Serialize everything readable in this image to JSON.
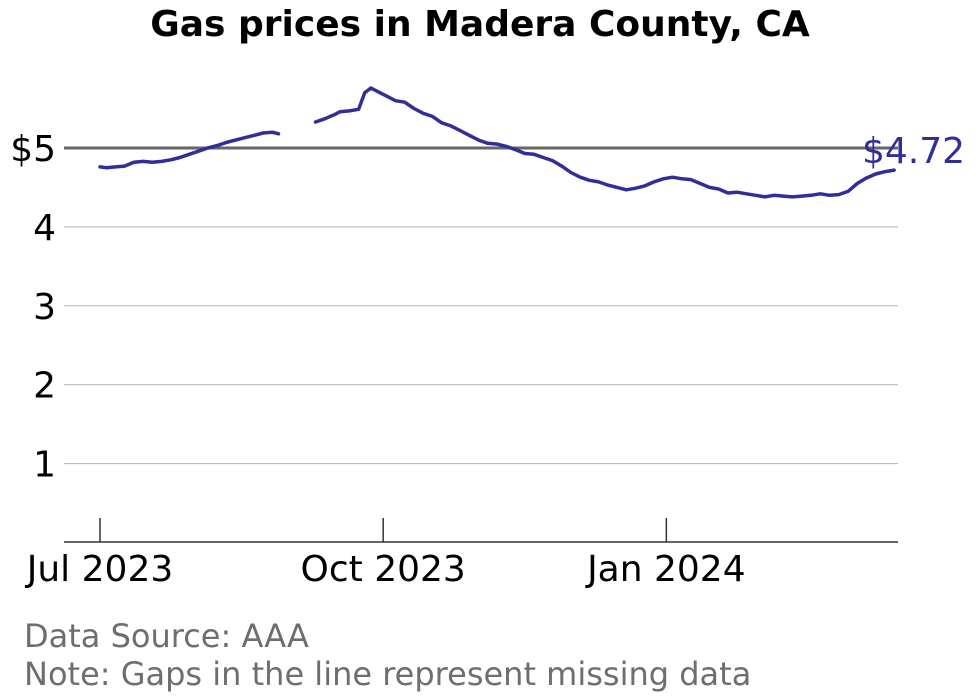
{
  "chart_data": {
    "type": "line",
    "title": "Gas prices in Madera County, CA",
    "y_tick_labels": [
      "$5",
      "4",
      "3",
      "2",
      "1"
    ],
    "y_ticks": [
      5,
      4,
      3,
      2,
      1
    ],
    "ylim": [
      0,
      6
    ],
    "x_tick_labels": [
      "Jul 2023",
      "Oct 2023",
      "Jan 2024"
    ],
    "x_ticks": [
      "2023-07-01",
      "2023-10-01",
      "2024-01-01"
    ],
    "reference_line": {
      "value": 5,
      "color": "#666666"
    },
    "last_value_label": "$4.72",
    "grid": true,
    "series": [
      {
        "color": "#332d99",
        "points": [
          [
            "2023-07-01",
            4.76
          ],
          [
            "2023-07-03",
            4.75
          ],
          [
            "2023-07-06",
            4.76
          ],
          [
            "2023-07-09",
            4.77
          ],
          [
            "2023-07-12",
            4.82
          ],
          [
            "2023-07-15",
            4.83
          ],
          [
            "2023-07-18",
            4.82
          ],
          [
            "2023-07-21",
            4.83
          ],
          [
            "2023-07-24",
            4.85
          ],
          [
            "2023-07-27",
            4.88
          ],
          [
            "2023-07-30",
            4.92
          ],
          [
            "2023-08-02",
            4.96
          ],
          [
            "2023-08-05",
            5.0
          ],
          [
            "2023-08-08",
            5.03
          ],
          [
            "2023-08-11",
            5.07
          ],
          [
            "2023-08-14",
            5.1
          ],
          [
            "2023-08-17",
            5.13
          ],
          [
            "2023-08-20",
            5.16
          ],
          [
            "2023-08-23",
            5.19
          ],
          [
            "2023-08-26",
            5.2
          ],
          [
            "2023-08-28",
            5.18
          ],
          null,
          [
            "2023-09-09",
            5.33
          ],
          [
            "2023-09-12",
            5.37
          ],
          [
            "2023-09-15",
            5.42
          ],
          [
            "2023-09-17",
            5.46
          ],
          [
            "2023-09-20",
            5.47
          ],
          [
            "2023-09-23",
            5.49
          ],
          [
            "2023-09-25",
            5.7
          ],
          [
            "2023-09-27",
            5.76
          ],
          [
            "2023-09-29",
            5.72
          ],
          [
            "2023-10-02",
            5.66
          ],
          [
            "2023-10-05",
            5.6
          ],
          [
            "2023-10-08",
            5.58
          ],
          [
            "2023-10-11",
            5.5
          ],
          [
            "2023-10-14",
            5.44
          ],
          [
            "2023-10-17",
            5.4
          ],
          [
            "2023-10-20",
            5.32
          ],
          [
            "2023-10-23",
            5.28
          ],
          [
            "2023-10-26",
            5.22
          ],
          [
            "2023-10-29",
            5.16
          ],
          [
            "2023-11-01",
            5.1
          ],
          [
            "2023-11-04",
            5.06
          ],
          [
            "2023-11-07",
            5.05
          ],
          [
            "2023-11-10",
            5.02
          ],
          [
            "2023-11-13",
            4.98
          ],
          [
            "2023-11-16",
            4.93
          ],
          [
            "2023-11-19",
            4.92
          ],
          [
            "2023-11-22",
            4.88
          ],
          [
            "2023-11-25",
            4.84
          ],
          [
            "2023-11-28",
            4.77
          ],
          [
            "2023-12-01",
            4.69
          ],
          [
            "2023-12-04",
            4.63
          ],
          [
            "2023-12-07",
            4.59
          ],
          [
            "2023-12-10",
            4.57
          ],
          [
            "2023-12-13",
            4.53
          ],
          [
            "2023-12-16",
            4.5
          ],
          [
            "2023-12-19",
            4.47
          ],
          [
            "2023-12-22",
            4.49
          ],
          [
            "2023-12-25",
            4.52
          ],
          [
            "2023-12-28",
            4.57
          ],
          [
            "2023-12-31",
            4.61
          ],
          [
            "2024-01-03",
            4.63
          ],
          [
            "2024-01-06",
            4.61
          ],
          [
            "2024-01-09",
            4.6
          ],
          [
            "2024-01-12",
            4.55
          ],
          [
            "2024-01-15",
            4.5
          ],
          [
            "2024-01-18",
            4.48
          ],
          [
            "2024-01-21",
            4.43
          ],
          [
            "2024-01-24",
            4.44
          ],
          [
            "2024-01-27",
            4.42
          ],
          [
            "2024-01-30",
            4.4
          ],
          [
            "2024-02-02",
            4.38
          ],
          [
            "2024-02-05",
            4.4
          ],
          [
            "2024-02-08",
            4.39
          ],
          [
            "2024-02-11",
            4.38
          ],
          [
            "2024-02-14",
            4.39
          ],
          [
            "2024-02-17",
            4.4
          ],
          [
            "2024-02-20",
            4.42
          ],
          [
            "2024-02-23",
            4.4
          ],
          [
            "2024-02-26",
            4.41
          ],
          [
            "2024-02-29",
            4.45
          ],
          [
            "2024-03-03",
            4.55
          ],
          [
            "2024-03-06",
            4.62
          ],
          [
            "2024-03-09",
            4.67
          ],
          [
            "2024-03-12",
            4.7
          ],
          [
            "2024-03-15",
            4.72
          ]
        ]
      }
    ]
  },
  "footer": {
    "source": "Data Source: AAA",
    "note": "Note: Gaps in the line represent missing data"
  }
}
